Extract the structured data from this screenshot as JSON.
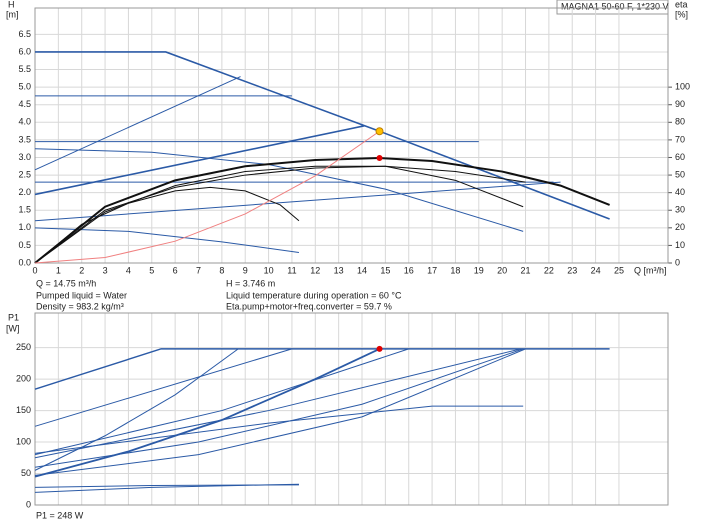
{
  "chart_data": [
    {
      "type": "line",
      "title": "MAGNA1 50-60 F, 1*230 V",
      "y_label": "H",
      "y_unit": "[m]",
      "y2_label": "eta",
      "y2_unit": "[%]",
      "x_label": "Q [m³/h]",
      "annotations": [
        "Q = 14.75 m³/h",
        "Pumped liquid = Water",
        "Density = 983.2 kg/m³",
        "H = 3.746 m",
        "Liquid temperature during operation = 60 °C",
        "Eta.pump+motor+freq.converter = 59.7 %"
      ],
      "xlim": [
        0,
        27.1
      ],
      "ylim": [
        0,
        7.25
      ],
      "y2lim": [
        0,
        145
      ],
      "grid": true,
      "xticks": [
        0,
        1,
        2,
        3,
        4,
        5,
        6,
        7,
        8,
        9,
        10,
        11,
        12,
        13,
        14,
        15,
        16,
        17,
        18,
        19,
        20,
        21,
        22,
        23,
        24,
        25
      ],
      "yticks": [
        {
          "value": 0,
          "label": "0.0"
        },
        {
          "value": 0.5,
          "label": "0.5"
        },
        {
          "value": 1,
          "label": "1.0"
        },
        {
          "value": 1.5,
          "label": "1.5"
        },
        {
          "value": 2,
          "label": "2.0"
        },
        {
          "value": 2.5,
          "label": "2.5"
        },
        {
          "value": 3,
          "label": "3.0"
        },
        {
          "value": 3.5,
          "label": "3.5"
        },
        {
          "value": 4,
          "label": "4.0"
        },
        {
          "value": 4.5,
          "label": "4.5"
        },
        {
          "value": 5,
          "label": "5.0"
        },
        {
          "value": 5.5,
          "label": "5.5"
        },
        {
          "value": 6,
          "label": "6.0"
        },
        {
          "value": 6.5,
          "label": "6.5"
        }
      ],
      "y2ticks": [
        0,
        10,
        20,
        30,
        40,
        50,
        60,
        70,
        80,
        90,
        100
      ],
      "series": [
        {
          "color": "#2b5aa6",
          "width": 1.6,
          "x": [
            0,
            5.6,
            14.75,
            24.6
          ],
          "values": [
            6.0,
            6.0,
            3.746,
            1.25
          ]
        },
        {
          "color": "#2b5aa6",
          "width": 1.6,
          "x": [
            0,
            14.1
          ],
          "values": [
            1.95,
            3.9
          ]
        },
        {
          "color": "#2b5aa6",
          "width": 1,
          "x": [
            0,
            8.8
          ],
          "values": [
            2.65,
            5.3
          ]
        },
        {
          "color": "#2b5aa6",
          "width": 1,
          "x": [
            0,
            22.5
          ],
          "values": [
            1.2,
            2.3
          ]
        },
        {
          "color": "#2b5aa6",
          "width": 1,
          "x": [
            0,
            11
          ],
          "values": [
            4.75,
            4.75
          ]
        },
        {
          "color": "#2b5aa6",
          "width": 1,
          "x": [
            0,
            19
          ],
          "values": [
            3.45,
            3.45
          ]
        },
        {
          "color": "#2b5aa6",
          "width": 1,
          "x": [
            0,
            22.2
          ],
          "values": [
            2.3,
            2.3
          ]
        },
        {
          "color": "#2b5aa6",
          "width": 1,
          "x": [
            0,
            5,
            10,
            15,
            20.9
          ],
          "values": [
            3.25,
            3.15,
            2.8,
            2.1,
            0.9
          ]
        },
        {
          "color": "#2b5aa6",
          "width": 1,
          "x": [
            0,
            4,
            8,
            11.3
          ],
          "values": [
            1.0,
            0.9,
            0.6,
            0.3
          ]
        },
        {
          "color": "#111111",
          "width": 2,
          "axis": "y2",
          "x": [
            0,
            3,
            6,
            9,
            12,
            14.75,
            17,
            20,
            22.5,
            24.6
          ],
          "values": [
            0,
            32,
            47,
            55,
            58.6,
            59.7,
            58,
            52,
            44,
            33
          ]
        },
        {
          "color": "#111111",
          "width": 1,
          "axis": "y2",
          "x": [
            0,
            2,
            4,
            6,
            7.5,
            9,
            10.5,
            11.3
          ],
          "values": [
            0,
            22,
            34,
            41,
            43,
            41,
            33,
            24
          ]
        },
        {
          "color": "#111111",
          "width": 1,
          "axis": "y2",
          "x": [
            0,
            3,
            6,
            9,
            12,
            15,
            18,
            20.9
          ],
          "values": [
            0,
            30,
            43,
            50,
            54,
            55,
            47,
            32
          ]
        },
        {
          "color": "#111111",
          "width": 1,
          "axis": "y2",
          "x": [
            0,
            3,
            6,
            9,
            12,
            15,
            18,
            21
          ],
          "values": [
            0,
            29,
            44,
            52,
            55,
            55,
            52,
            46
          ]
        },
        {
          "color": "#f08080",
          "width": 1,
          "x": [
            0,
            3,
            6,
            9,
            12,
            14.75
          ],
          "values": [
            0,
            0.155,
            0.62,
            1.395,
            2.48,
            3.746
          ]
        },
        {
          "color": "#ffc000",
          "marker": true,
          "x": [
            14.75
          ],
          "values": [
            3.746
          ]
        },
        {
          "color": "#e00000",
          "marker": true,
          "axis": "y2",
          "x": [
            14.75
          ],
          "values": [
            59.7
          ]
        }
      ]
    },
    {
      "type": "line",
      "y_label": "P1",
      "y_unit": "[W]",
      "annotations": [
        "P1 = 248 W"
      ],
      "xlim": [
        0,
        27.1
      ],
      "ylim": [
        0,
        305
      ],
      "grid": true,
      "yticks": [
        0,
        50,
        100,
        150,
        200,
        250
      ],
      "series": [
        {
          "color": "#2b5aa6",
          "width": 1.4,
          "x": [
            0,
            5.4,
            24.6
          ],
          "values": [
            184,
            248,
            248
          ]
        },
        {
          "color": "#2b5aa6",
          "width": 1,
          "x": [
            0,
            11
          ],
          "values": [
            125,
            248
          ]
        },
        {
          "color": "#2b5aa6",
          "width": 1,
          "x": [
            0,
            3,
            6,
            8.7
          ],
          "values": [
            55,
            110,
            175,
            248
          ]
        },
        {
          "color": "#2b5aa6",
          "width": 1.8,
          "x": [
            0,
            4,
            8,
            12,
            14.75
          ],
          "values": [
            45,
            85,
            135,
            200,
            248
          ]
        },
        {
          "color": "#2b5aa6",
          "width": 1,
          "x": [
            0,
            8,
            16
          ],
          "values": [
            80,
            150,
            248
          ]
        },
        {
          "color": "#2b5aa6",
          "width": 1,
          "x": [
            0,
            10,
            20.8
          ],
          "values": [
            75,
            150,
            248
          ]
        },
        {
          "color": "#2b5aa6",
          "width": 1,
          "x": [
            0,
            7,
            14,
            20.9
          ],
          "values": [
            60,
            100,
            160,
            248
          ]
        },
        {
          "color": "#2b5aa6",
          "width": 1,
          "x": [
            0,
            7,
            14,
            21
          ],
          "values": [
            47,
            80,
            140,
            248
          ]
        },
        {
          "color": "#2b5aa6",
          "width": 1,
          "x": [
            0,
            10,
            17,
            20.9
          ],
          "values": [
            82,
            130,
            157,
            157
          ]
        },
        {
          "color": "#2b5aa6",
          "width": 1,
          "x": [
            0,
            5,
            11.3
          ],
          "values": [
            28,
            31,
            32
          ]
        },
        {
          "color": "#2b5aa6",
          "width": 1,
          "x": [
            0,
            5,
            11.3
          ],
          "values": [
            20,
            28,
            33
          ]
        },
        {
          "color": "#e00000",
          "marker": true,
          "x": [
            14.75
          ],
          "values": [
            248
          ]
        }
      ]
    }
  ]
}
